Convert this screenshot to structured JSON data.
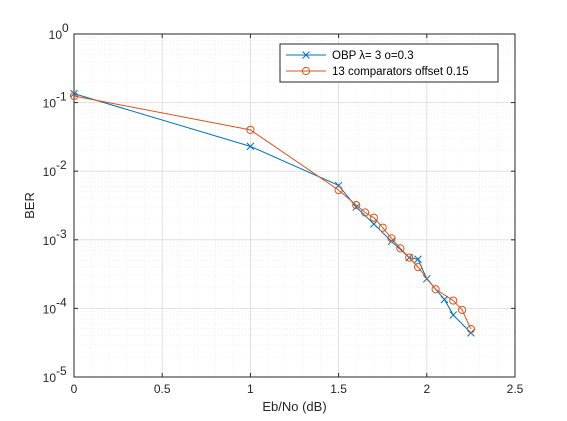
{
  "chart_data": {
    "type": "line",
    "title": "",
    "xlabel": "Eb/No (dB)",
    "ylabel": "BER",
    "xlim": [
      0,
      2.5
    ],
    "ylim": [
      1e-05,
      1
    ],
    "yscale": "log",
    "grid": true,
    "minor_grid": true,
    "x_ticks": [
      "0",
      "0.5",
      "1",
      "1.5",
      "2",
      "2.5"
    ],
    "y_ticks": [
      "10",
      "10",
      "10",
      "10",
      "10",
      "10"
    ],
    "y_tick_exponents": [
      "-5",
      "-4",
      "-3",
      "-2",
      "-1",
      "0"
    ],
    "legend_position": "top-right",
    "series": [
      {
        "name": "OBP  λ= 3 o=0.3",
        "color": "#0072BD",
        "marker": "x",
        "x": [
          0,
          1,
          1.5,
          1.6,
          1.7,
          1.8,
          1.9,
          1.95,
          2.0,
          2.1,
          2.15,
          2.25
        ],
        "y": [
          0.135,
          0.023,
          0.0062,
          0.003,
          0.0017,
          0.00095,
          0.00055,
          0.00052,
          0.00027,
          0.000135,
          8e-05,
          4.4e-05
        ]
      },
      {
        "name": "13 comparators offset 0.15",
        "color": "#D95319",
        "marker": "o",
        "x": [
          0,
          1,
          1.5,
          1.6,
          1.65,
          1.7,
          1.75,
          1.8,
          1.85,
          1.9,
          1.95,
          2.05,
          2.15,
          2.2,
          2.25
        ],
        "y": [
          0.125,
          0.04,
          0.0053,
          0.0032,
          0.0025,
          0.0021,
          0.0015,
          0.00105,
          0.00075,
          0.00055,
          0.0004,
          0.00019,
          0.00013,
          9.5e-05,
          5e-05
        ]
      }
    ]
  }
}
